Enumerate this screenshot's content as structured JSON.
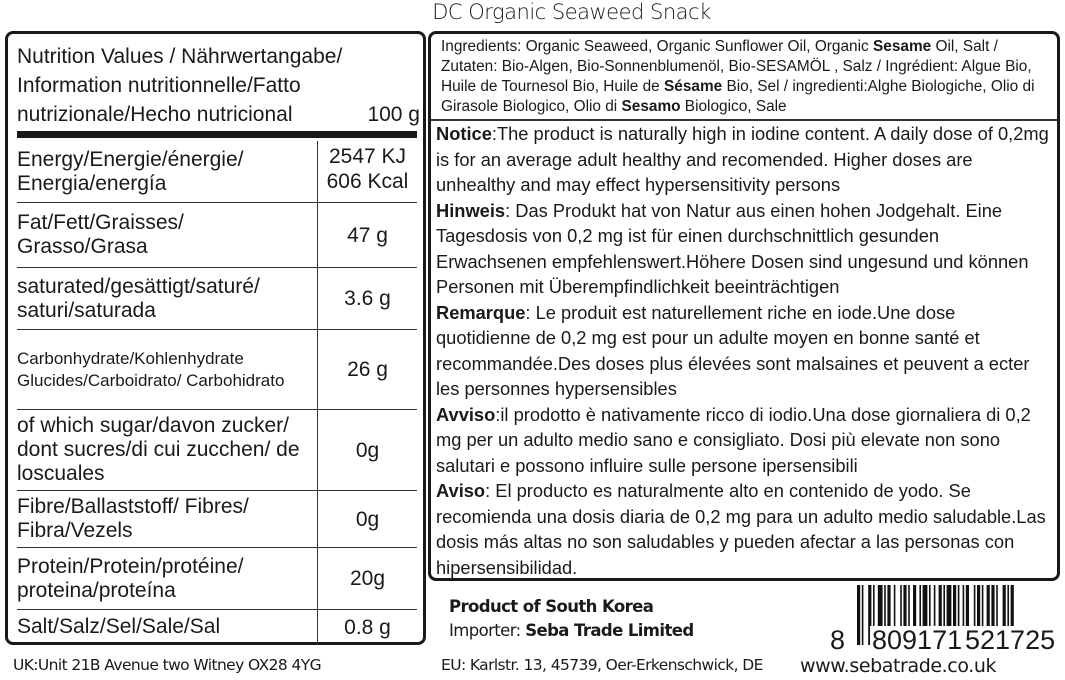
{
  "title": "DC Organic Seaweed Snack",
  "nutrition": {
    "header": "Nutrition Values / Nährwertangabe/ Information nutritionnelle/Fatto nutrizionale/Hecho nutricional",
    "per": "100 g",
    "rows": [
      {
        "label": "Energy/Energie/énergie/ Energia/energía",
        "value": "2547 KJ 606 Kcal"
      },
      {
        "label": "Fat/Fett/Graisses/ Grasso/Grasa",
        "value": "47 g"
      },
      {
        "label": "saturated/gesättigt/saturé/ saturi/saturada",
        "value": "3.6 g"
      },
      {
        "label": "Carbonhydrate/Kohlenhydrate Glucides/Carboidrato/ Carbohidrato",
        "value": "26 g"
      },
      {
        "label": "of which sugar/davon zucker/ dont sucres/di cui zucchen/ de loscuales",
        "value": "0g"
      },
      {
        "label": "Fibre/Ballaststoff/ Fibres/ Fibra/Vezels",
        "value": "0g"
      },
      {
        "label": "Protein/Protein/protéine/ proteina/proteína",
        "value": "20g"
      },
      {
        "label": "Salt/Salz/Sel/Sale/Sal",
        "value": "0.8 g"
      }
    ]
  },
  "ingredients": [
    {
      "t": "Ingredients: Organic Seaweed, Organic Sunflower Oil, Organic ",
      "b": false
    },
    {
      "t": "Sesame",
      "b": true
    },
    {
      "t": " Oil, Salt / Zutaten:  Bio-Algen, Bio-Sonnenblumenöl, Bio-SESAMÖL , Salz / Ingrédient: Algue Bio, Huile de Tournesol Bio, Huile de ",
      "b": false
    },
    {
      "t": "Sésame",
      "b": true
    },
    {
      "t": " Bio, Sel / ingredienti:Alghe Biologiche, Olio di Girasole Biologico, Olio di ",
      "b": false
    },
    {
      "t": "Sesamo",
      "b": true
    },
    {
      "t": " Biologico, Sale",
      "b": false
    }
  ],
  "notices": [
    {
      "head": "Notice",
      "text": ":The product is naturally high in iodine content. A daily dose of 0,2mg is for an average adult healthy and recomended. Higher doses are unhealthy and may effect hypersensitivity persons"
    },
    {
      "head": "Hinweis",
      "text": ": Das Produkt hat von Natur aus einen hohen Jodgehalt. Eine Tagesdosis von 0,2 mg ist für einen durchschnittlich gesunden Erwachsenen empfehlenswert.Höhere Dosen sind ungesund und können Personen mit Überempfindlichkeit beeinträchtigen"
    },
    {
      "head": "Remarque",
      "text": ": Le produit est naturellement riche en iode.Une dose quotidienne de 0,2 mg est pour un adulte moyen en bonne santé et recommandée.Des  doses plus élevées sont malsaines et peuvent a ecter les personnes hypersensibles"
    },
    {
      "head": "Avviso",
      "text": ":il prodotto è nativamente ricco di iodio.Una dose giornaliera di 0,2 mg per un adulto medio sano e consigliato. Dosi più elevate non sono salutari e possono influire sulle persone ipersensibili"
    },
    {
      "head": "Aviso",
      "text": ": El producto es naturalmente alto en contenido de yodo. Se recomienda una dosis diaria de 0,2 mg para un adulto medio saludable.Las dosis más altas no son saludables y pueden afectar a las personas con hipersensibilidad."
    }
  ],
  "origin": "Product of South Korea",
  "importer_label": "Importer: ",
  "importer": "Seba Trade Limited",
  "address_uk": "UK:Unit 21B Avenue two Witney OX28 4YG",
  "address_eu": "EU: Karlstr. 13, 45739, Oer-Erkenschwick, DE",
  "barcode": {
    "first": "8",
    "left": "809171",
    "right": "521725"
  },
  "website": "www.sebatrade.co.uk"
}
